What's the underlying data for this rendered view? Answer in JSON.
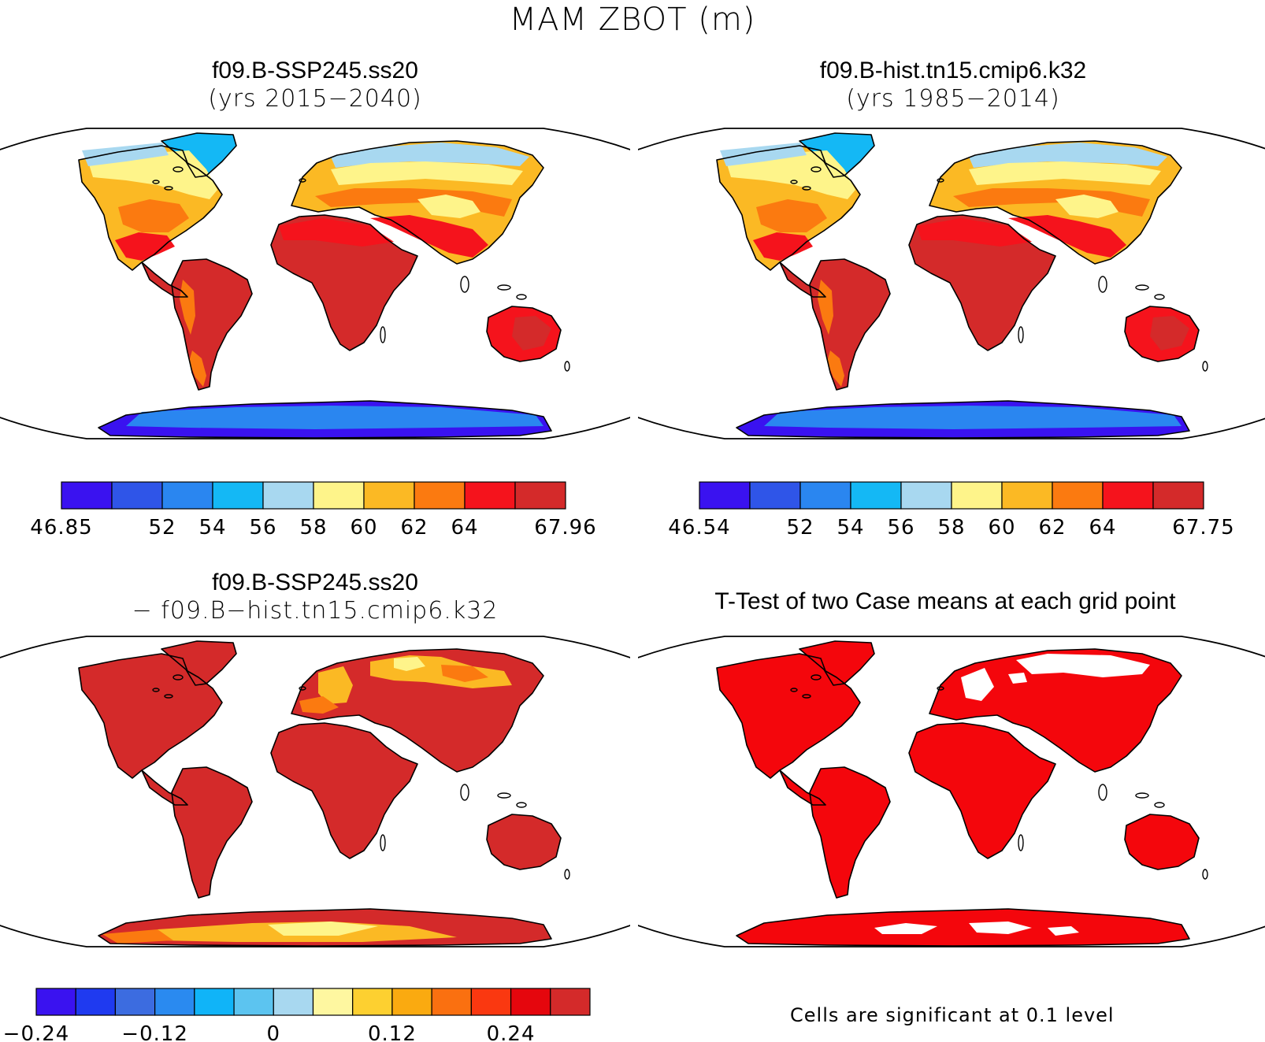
{
  "figure": {
    "title": "MAM ZBOT (m)"
  },
  "panels": [
    {
      "id": "case",
      "title": "f09.B-SSP245.ss20",
      "subtitle": "(yrs 2015−2040)",
      "colorbar": {
        "colors": [
          "#3a12f0",
          "#2f55e8",
          "#2a86f0",
          "#14b8f5",
          "#a8d8f0",
          "#fef48a",
          "#fbb924",
          "#fb7a10",
          "#f5131c",
          "#d42a2a"
        ],
        "labels": [
          "46.85",
          "",
          "52",
          "54",
          "56",
          "58",
          "60",
          "62",
          "64",
          "",
          "67.96"
        ]
      }
    },
    {
      "id": "control",
      "title": "f09.B-hist.tn15.cmip6.k32",
      "subtitle": "(yrs 1985−2014)",
      "colorbar": {
        "colors": [
          "#3a12f0",
          "#2f55e8",
          "#2a86f0",
          "#14b8f5",
          "#a8d8f0",
          "#fef48a",
          "#fbb924",
          "#fb7a10",
          "#f5131c",
          "#d42a2a"
        ],
        "labels": [
          "46.54",
          "",
          "52",
          "54",
          "56",
          "58",
          "60",
          "62",
          "64",
          "",
          "67.75"
        ]
      }
    },
    {
      "id": "difference",
      "title": "f09.B-SSP245.ss20",
      "subtitle": "− f09.B−hist.tn15.cmip6.k32",
      "colorbar": {
        "colors": [
          "#3a12f0",
          "#1f3af0",
          "#3c6ce0",
          "#2a8af0",
          "#10b4f8",
          "#5cc4f0",
          "#a8d8f0",
          "#fef7a0",
          "#fdd030",
          "#faaa10",
          "#fa7010",
          "#fa3810",
          "#e5060d",
          "#d42a2a"
        ],
        "labels": [
          "−0.24",
          "",
          "",
          "−0.12",
          "",
          "",
          "0",
          "",
          "",
          "0.12",
          "",
          "",
          "0.24"
        ]
      }
    },
    {
      "id": "ttest",
      "title": "T-Test of two Case means at each grid point",
      "note": "Cells are significant at 0.1 level"
    }
  ],
  "map_colors": {
    "tropics": "#d42a2a",
    "warm": "#f5131c",
    "orange": "#fb7a10",
    "amber": "#fbb924",
    "yellow": "#fef48a",
    "lightblue": "#a8d8f0",
    "cyan": "#14b8f5",
    "blue": "#2a86f0",
    "deepblue": "#3a12f0",
    "significant": "#f4060c"
  }
}
